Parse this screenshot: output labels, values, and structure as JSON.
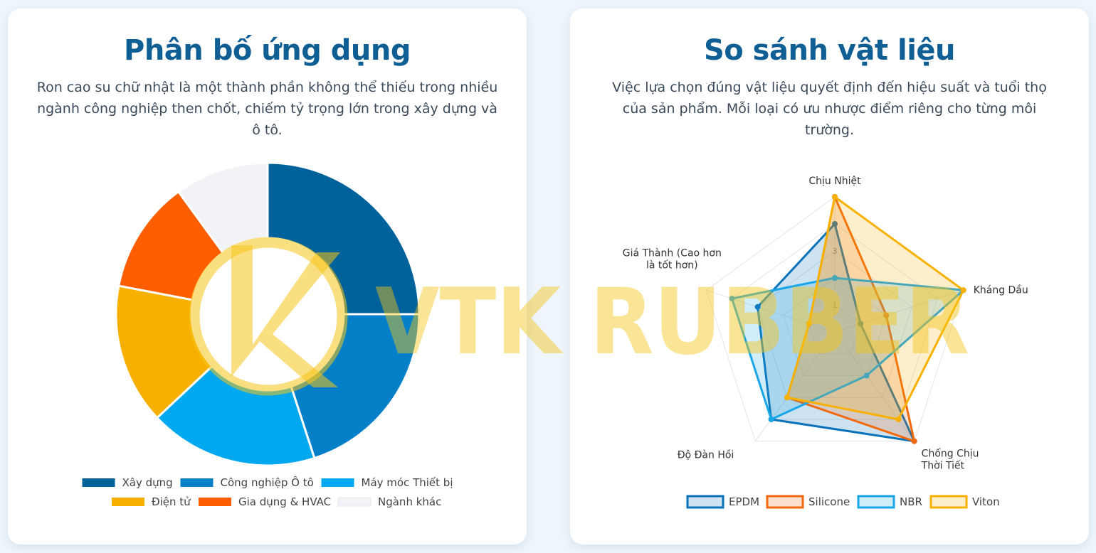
{
  "left": {
    "title": "Phân bố ứng dụng",
    "description": "Ron cao su chữ nhật là một thành phần không thể thiếu trong nhiều ngành công nghiệp then chốt, chiếm tỷ trọng lớn trong xây dựng và ô tô."
  },
  "right": {
    "title": "So sánh vật liệu",
    "description": "Việc lựa chọn đúng vật liệu quyết định đến hiệu suất và tuổi thọ của sản phẩm. Mỗi loại có ưu nhược điểm riêng cho từng môi trường."
  },
  "watermark": {
    "text": "VTK RUBBER",
    "logo_letter": "K",
    "color": "#f5c518"
  },
  "chart_data": [
    {
      "type": "pie",
      "variant": "donut",
      "categories": [
        "Xây dựng",
        "Công nghiệp Ô tô",
        "Máy móc Thiết bị",
        "Điện tử",
        "Gia dụng & HVAC",
        "Ngành khác"
      ],
      "values": [
        25,
        20,
        18,
        15,
        12,
        10
      ],
      "colors": [
        "#00629b",
        "#0580c8",
        "#00a8f0",
        "#f8b000",
        "#ff5e00",
        "#f1f3f6"
      ],
      "legend": "bottom"
    },
    {
      "type": "radar",
      "axes": [
        "Chịu Nhiệt",
        "Kháng Dầu",
        "Chống Chịu Thời Tiết",
        "Độ Đàn Hồi",
        "Giá Thành (Cao hơn là tốt hơn)"
      ],
      "rmax": 5,
      "ticks": [
        1,
        2,
        3,
        4,
        5
      ],
      "series": [
        {
          "name": "EPDM",
          "values": [
            4,
            1,
            5,
            4,
            3
          ],
          "color": "#0a72b8"
        },
        {
          "name": "Silicone",
          "values": [
            5,
            2,
            5,
            3,
            1
          ],
          "color": "#f26a10"
        },
        {
          "name": "NBR",
          "values": [
            2,
            5,
            2,
            4,
            4
          ],
          "color": "#18a6e6"
        },
        {
          "name": "Viton",
          "values": [
            5,
            5,
            4,
            3,
            1
          ],
          "color": "#f8b100"
        }
      ],
      "legend": "bottom"
    }
  ]
}
